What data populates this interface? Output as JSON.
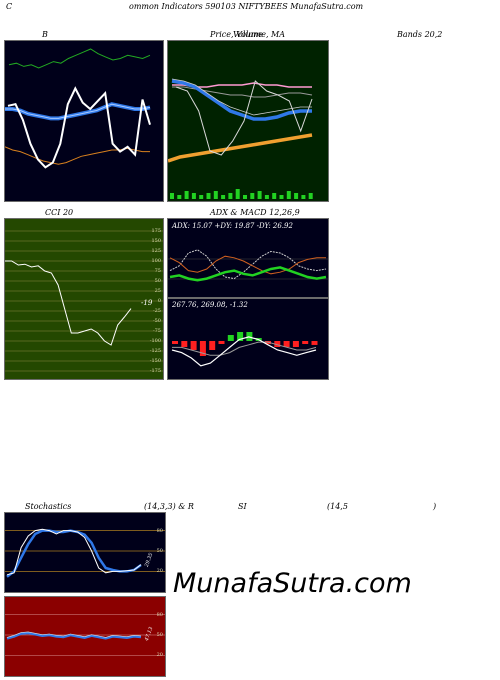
{
  "header": {
    "left": "C",
    "title": "ommon Indicators 590103 NIFTYBEES MunafaSutra.com"
  },
  "labels": {
    "b": "B",
    "price": "Price, Volume, MA",
    "volume_overlay": "Volume",
    "bands": "Bands 20,2",
    "cci": "CCI 20",
    "adx_macd": "ADX  & MACD 12,26,9",
    "stochastics": "Stochastics",
    "stoch_params": "(14,3,3) & R",
    "rsi": "SI",
    "rsi_params": "(14,5",
    "rsi_close": ")"
  },
  "cci_panel": {
    "value_label": "-19",
    "ticks": [
      "175",
      "150",
      "125",
      "100",
      "75",
      "50",
      "25",
      "0",
      "-25",
      "-50",
      "-75",
      "-100",
      "-125",
      "-150",
      "-175"
    ]
  },
  "adx_panel": {
    "adx_text": "ADX: 15.07 +DY: 19.87 -DY: 26.92",
    "macd_text": "267.76,  269.08,  -1.32"
  },
  "stoch_panel": {
    "ticks": [
      "80",
      "50",
      "20"
    ],
    "value_label": "29.35"
  },
  "rsi_panel": {
    "ticks": [
      "80",
      "50",
      "20"
    ],
    "value_label": "47.13"
  },
  "watermark": "MunafaSutra.com",
  "colors": {
    "panel_bg_dark": "#00001a",
    "price_bg": "#002200",
    "cci_bg": "#244800",
    "rsi_bg": "#8b0000",
    "accent_blue": "#2f78e8",
    "accent_green": "#22d222",
    "accent_orange": "#e08a1e"
  },
  "chart_data": [
    {
      "type": "line",
      "panel": "bollinger-bands",
      "series": [
        {
          "values": [
            120,
            121,
            119,
            120,
            118,
            120,
            122,
            121,
            124,
            126,
            128,
            130,
            127,
            125,
            123,
            124,
            126,
            125,
            124,
            126
          ]
        },
        {
          "values": [
            92,
            92,
            91,
            89,
            88,
            87,
            86,
            86,
            87,
            88,
            89,
            90,
            91,
            93,
            95,
            94,
            93,
            92,
            92,
            93
          ]
        },
        {
          "values": [
            68,
            66,
            65,
            63,
            61,
            59,
            58,
            57,
            58,
            60,
            62,
            63,
            64,
            65,
            66,
            66,
            67,
            66,
            65,
            65
          ]
        },
        {
          "values": [
            94,
            95,
            85,
            70,
            60,
            55,
            58,
            70,
            95,
            105,
            96,
            92,
            97,
            102,
            70,
            65,
            68,
            63,
            98,
            82
          ]
        }
      ]
    },
    {
      "type": "line",
      "panel": "price-volume-ma",
      "series": [
        {
          "values": [
            93,
            93,
            92,
            92,
            93,
            93,
            93,
            94,
            93,
            93,
            92,
            92,
            92
          ]
        },
        {
          "values": [
            92,
            92,
            91,
            90,
            89,
            88,
            88,
            87,
            87,
            88,
            89,
            89,
            88
          ]
        },
        {
          "values": [
            95,
            94,
            92,
            88,
            84,
            80,
            78,
            76,
            76,
            77,
            79,
            80,
            80
          ]
        },
        {
          "values": [
            96,
            95,
            93,
            89,
            85,
            82,
            80,
            78,
            79,
            80,
            81,
            82,
            82
          ]
        },
        {
          "values": [
            55,
            57,
            58,
            59,
            60,
            61,
            62,
            63,
            64,
            65,
            66,
            67,
            68
          ]
        },
        {
          "values": [
            92,
            90,
            80,
            60,
            58,
            65,
            75,
            95,
            90,
            88,
            85,
            70,
            86
          ]
        }
      ],
      "volume": [
        3,
        2,
        4,
        3,
        2,
        3,
        4,
        2,
        3,
        5,
        2,
        3,
        4,
        2,
        3,
        2,
        4,
        3,
        2,
        3
      ]
    },
    {
      "type": "line",
      "panel": "cci",
      "series": [
        {
          "values": [
            100,
            100,
            90,
            92,
            85,
            88,
            75,
            70,
            40,
            -20,
            -80,
            -80,
            -75,
            -70,
            -80,
            -100,
            -110,
            -60,
            -40,
            -19
          ]
        }
      ]
    },
    {
      "type": "line",
      "panel": "adx",
      "series": [
        {
          "name": "ADX",
          "values": [
            15,
            16,
            14,
            13,
            14,
            16,
            18,
            19,
            17,
            16,
            18,
            20,
            21,
            19,
            17,
            15,
            14,
            15
          ]
        },
        {
          "name": "+DY",
          "values": [
            19,
            22,
            30,
            32,
            28,
            20,
            15,
            14,
            18,
            23,
            28,
            31,
            30,
            27,
            22,
            20,
            19,
            20
          ]
        },
        {
          "name": "-DY",
          "values": [
            27,
            24,
            19,
            18,
            20,
            25,
            28,
            27,
            25,
            22,
            19,
            17,
            18,
            20,
            24,
            26,
            27,
            27
          ]
        }
      ]
    },
    {
      "type": "line",
      "panel": "macd",
      "series": [
        {
          "values": [
            268,
            267,
            265,
            262,
            263,
            266,
            269,
            272,
            273,
            272,
            270,
            268,
            267,
            266,
            267,
            268
          ]
        },
        {
          "values": [
            269,
            269,
            268,
            267,
            266,
            266,
            267,
            269,
            270,
            271,
            271,
            270,
            269,
            268,
            268,
            269
          ]
        }
      ],
      "histogram": [
        -1,
        -2,
        -3,
        -5,
        -3,
        -1,
        2,
        3,
        3,
        1,
        -1,
        -2,
        -2,
        -2,
        -1,
        -1.32
      ]
    },
    {
      "type": "line",
      "panel": "stochastics",
      "series": [
        {
          "values": [
            15,
            18,
            55,
            72,
            80,
            82,
            80,
            75,
            80,
            80,
            78,
            70,
            50,
            25,
            18,
            20,
            20,
            21,
            22,
            30
          ]
        },
        {
          "values": [
            12,
            20,
            40,
            60,
            75,
            80,
            80,
            78,
            78,
            80,
            78,
            74,
            62,
            40,
            25,
            22,
            20,
            20,
            22,
            29.35
          ]
        }
      ]
    },
    {
      "type": "line",
      "panel": "rsi",
      "series": [
        {
          "values": [
            45,
            48,
            52,
            53,
            51,
            49,
            50,
            48,
            47,
            50,
            48,
            46,
            49,
            47,
            45,
            48,
            47,
            46,
            48,
            47.13
          ]
        }
      ]
    }
  ]
}
